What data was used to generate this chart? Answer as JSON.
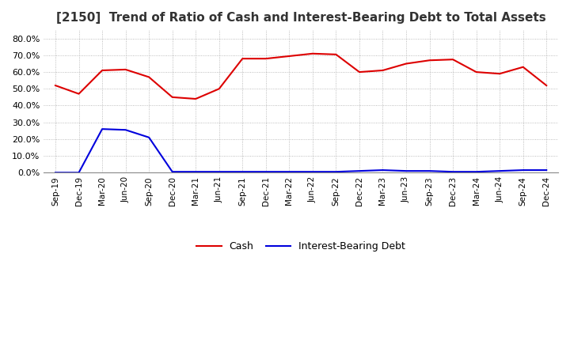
{
  "title": "[2150]  Trend of Ratio of Cash and Interest-Bearing Debt to Total Assets",
  "labels": [
    "Sep-19",
    "Dec-19",
    "Mar-20",
    "Jun-20",
    "Sep-20",
    "Dec-20",
    "Mar-21",
    "Jun-21",
    "Sep-21",
    "Dec-21",
    "Mar-22",
    "Jun-22",
    "Sep-22",
    "Dec-22",
    "Mar-23",
    "Jun-23",
    "Sep-23",
    "Dec-23",
    "Mar-24",
    "Jun-24",
    "Sep-24",
    "Dec-24"
  ],
  "cash": [
    0.52,
    0.47,
    0.61,
    0.615,
    0.57,
    0.45,
    0.44,
    0.5,
    0.68,
    0.68,
    0.695,
    0.71,
    0.705,
    0.6,
    0.61,
    0.65,
    0.67,
    0.675,
    0.6,
    0.59,
    0.63,
    0.52
  ],
  "debt": [
    0.0,
    0.0,
    0.26,
    0.255,
    0.21,
    0.005,
    0.005,
    0.005,
    0.005,
    0.005,
    0.005,
    0.005,
    0.005,
    0.01,
    0.015,
    0.01,
    0.01,
    0.005,
    0.005,
    0.01,
    0.015,
    0.015
  ],
  "cash_color": "#dd0000",
  "debt_color": "#0000dd",
  "ylim": [
    0.0,
    0.85
  ],
  "yticks": [
    0.0,
    0.1,
    0.2,
    0.3,
    0.4,
    0.5,
    0.6,
    0.7,
    0.8
  ],
  "legend_cash": "Cash",
  "legend_debt": "Interest-Bearing Debt",
  "grid_color": "#aaaaaa",
  "bg_color": "#ffffff",
  "plot_bg_color": "#ffffff",
  "title_fontsize": 11,
  "line_width": 1.5
}
